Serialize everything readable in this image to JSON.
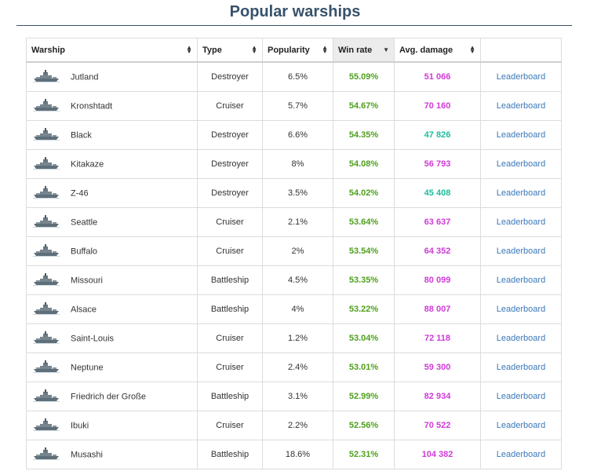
{
  "page": {
    "title": "Popular warships"
  },
  "columns": {
    "warship": "Warship",
    "type": "Type",
    "popularity": "Popularity",
    "win_rate": "Win rate",
    "avg_damage": "Avg. damage"
  },
  "colors": {
    "title": "#37526b",
    "win_rate": "#4ea01c",
    "damage_high": "#d03ad8",
    "damage_mid": "#1dbd9c",
    "link": "#3a78b8"
  },
  "ship_icon": "warship-thumbnail",
  "rows": [
    {
      "name": "Jutland",
      "type": "Destroyer",
      "popularity": "6.5%",
      "win_rate": "55.09%",
      "avg_damage": "51 066",
      "damage_color": "#d03ad8",
      "action": "Leaderboard"
    },
    {
      "name": "Kronshtadt",
      "type": "Cruiser",
      "popularity": "5.7%",
      "win_rate": "54.67%",
      "avg_damage": "70 160",
      "damage_color": "#d03ad8",
      "action": "Leaderboard"
    },
    {
      "name": "Black",
      "type": "Destroyer",
      "popularity": "6.6%",
      "win_rate": "54.35%",
      "avg_damage": "47 826",
      "damage_color": "#1dbd9c",
      "action": "Leaderboard"
    },
    {
      "name": "Kitakaze",
      "type": "Destroyer",
      "popularity": "8%",
      "win_rate": "54.08%",
      "avg_damage": "56 793",
      "damage_color": "#d03ad8",
      "action": "Leaderboard"
    },
    {
      "name": "Z-46",
      "type": "Destroyer",
      "popularity": "3.5%",
      "win_rate": "54.02%",
      "avg_damage": "45 408",
      "damage_color": "#1dbd9c",
      "action": "Leaderboard"
    },
    {
      "name": "Seattle",
      "type": "Cruiser",
      "popularity": "2.1%",
      "win_rate": "53.64%",
      "avg_damage": "63 637",
      "damage_color": "#d03ad8",
      "action": "Leaderboard"
    },
    {
      "name": "Buffalo",
      "type": "Cruiser",
      "popularity": "2%",
      "win_rate": "53.54%",
      "avg_damage": "64 352",
      "damage_color": "#d03ad8",
      "action": "Leaderboard"
    },
    {
      "name": "Missouri",
      "type": "Battleship",
      "popularity": "4.5%",
      "win_rate": "53.35%",
      "avg_damage": "80 099",
      "damage_color": "#d03ad8",
      "action": "Leaderboard"
    },
    {
      "name": "Alsace",
      "type": "Battleship",
      "popularity": "4%",
      "win_rate": "53.22%",
      "avg_damage": "88 007",
      "damage_color": "#d03ad8",
      "action": "Leaderboard"
    },
    {
      "name": "Saint-Louis",
      "type": "Cruiser",
      "popularity": "1.2%",
      "win_rate": "53.04%",
      "avg_damage": "72 118",
      "damage_color": "#d03ad8",
      "action": "Leaderboard"
    },
    {
      "name": "Neptune",
      "type": "Cruiser",
      "popularity": "2.4%",
      "win_rate": "53.01%",
      "avg_damage": "59 300",
      "damage_color": "#d03ad8",
      "action": "Leaderboard"
    },
    {
      "name": "Friedrich der Große",
      "type": "Battleship",
      "popularity": "3.1%",
      "win_rate": "52.99%",
      "avg_damage": "82 934",
      "damage_color": "#d03ad8",
      "action": "Leaderboard"
    },
    {
      "name": "Ibuki",
      "type": "Cruiser",
      "popularity": "2.2%",
      "win_rate": "52.56%",
      "avg_damage": "70 522",
      "damage_color": "#d03ad8",
      "action": "Leaderboard"
    },
    {
      "name": "Musashi",
      "type": "Battleship",
      "popularity": "18.6%",
      "win_rate": "52.31%",
      "avg_damage": "104 382",
      "damage_color": "#d03ad8",
      "action": "Leaderboard"
    }
  ]
}
